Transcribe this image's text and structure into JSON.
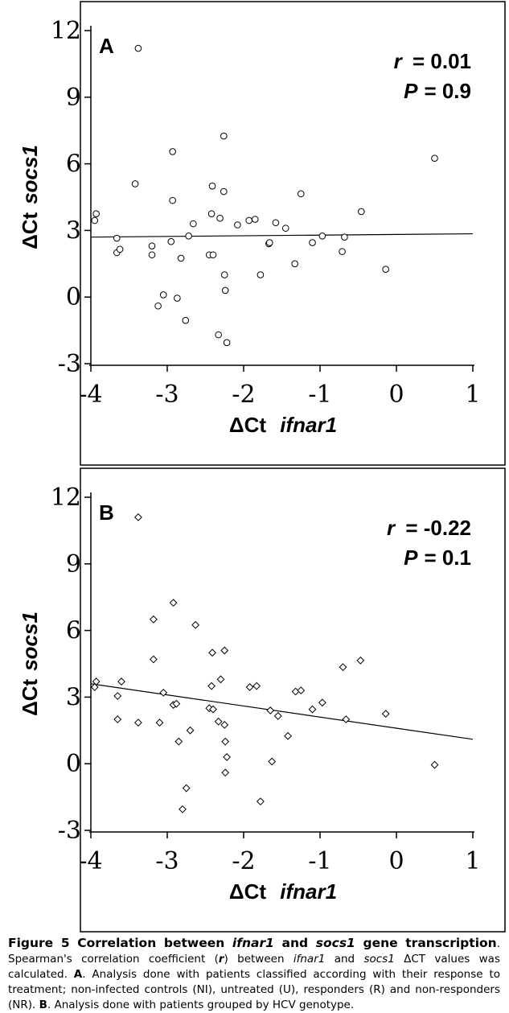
{
  "chart_data": [
    {
      "type": "scatter",
      "panel_label": "A",
      "marker": "circle",
      "xlabel_prefix": "ΔCt",
      "xlabel_gene": "ifnar1",
      "ylabel_prefix": "ΔCt",
      "ylabel_gene": "socs1",
      "xlim": [
        -4,
        1
      ],
      "ylim": [
        -3,
        12
      ],
      "x_ticks": [
        -4,
        -3,
        -2,
        -1,
        0,
        1
      ],
      "x_tick_labels": [
        "-4",
        "-3",
        "-2",
        "-1",
        "0",
        "1"
      ],
      "y_ticks": [
        -3,
        0,
        3,
        6,
        9,
        12
      ],
      "y_tick_labels": [
        "-3",
        "0",
        "3",
        "6",
        "9",
        "12"
      ],
      "stat_r_label": "r",
      "stat_r_value": "= 0.01",
      "stat_p_label": "P",
      "stat_p_value": "=  0.9",
      "fit_line": {
        "x": [
          -4,
          1
        ],
        "y": [
          2.7,
          2.85
        ]
      },
      "points": [
        {
          "x": -3.38,
          "y": 11.2
        },
        {
          "x": -3.95,
          "y": 3.45
        },
        {
          "x": -3.93,
          "y": 3.75
        },
        {
          "x": -3.66,
          "y": 2.65
        },
        {
          "x": -3.66,
          "y": 2.0
        },
        {
          "x": -3.62,
          "y": 2.15
        },
        {
          "x": -3.42,
          "y": 5.1
        },
        {
          "x": -3.2,
          "y": 2.3
        },
        {
          "x": -3.2,
          "y": 1.9
        },
        {
          "x": -3.12,
          "y": -0.4
        },
        {
          "x": -3.05,
          "y": 0.1
        },
        {
          "x": -2.93,
          "y": 6.55
        },
        {
          "x": -2.93,
          "y": 4.35
        },
        {
          "x": -2.95,
          "y": 2.5
        },
        {
          "x": -2.87,
          "y": -0.05
        },
        {
          "x": -2.82,
          "y": 1.75
        },
        {
          "x": -2.76,
          "y": -1.05
        },
        {
          "x": -2.72,
          "y": 2.75
        },
        {
          "x": -2.66,
          "y": 3.3
        },
        {
          "x": -2.45,
          "y": 1.9
        },
        {
          "x": -2.4,
          "y": 1.9
        },
        {
          "x": -2.41,
          "y": 5.0
        },
        {
          "x": -2.42,
          "y": 3.75
        },
        {
          "x": -2.33,
          "y": -1.7
        },
        {
          "x": -2.31,
          "y": 3.55
        },
        {
          "x": -2.26,
          "y": 7.25
        },
        {
          "x": -2.26,
          "y": 4.75
        },
        {
          "x": -2.25,
          "y": 1.0
        },
        {
          "x": -2.24,
          "y": 0.3
        },
        {
          "x": -2.22,
          "y": -2.05
        },
        {
          "x": -2.08,
          "y": 3.25
        },
        {
          "x": -1.93,
          "y": 3.45
        },
        {
          "x": -1.85,
          "y": 3.5
        },
        {
          "x": -1.78,
          "y": 1.0
        },
        {
          "x": -1.67,
          "y": 2.4
        },
        {
          "x": -1.66,
          "y": 2.45
        },
        {
          "x": -1.58,
          "y": 3.35
        },
        {
          "x": -1.45,
          "y": 3.1
        },
        {
          "x": -1.33,
          "y": 1.5
        },
        {
          "x": -1.25,
          "y": 4.65
        },
        {
          "x": -1.1,
          "y": 2.45
        },
        {
          "x": -0.97,
          "y": 2.75
        },
        {
          "x": -0.71,
          "y": 2.05
        },
        {
          "x": -0.68,
          "y": 2.7
        },
        {
          "x": -0.46,
          "y": 3.85
        },
        {
          "x": -0.14,
          "y": 1.25
        },
        {
          "x": 0.5,
          "y": 6.25
        }
      ]
    },
    {
      "type": "scatter",
      "panel_label": "B",
      "marker": "diamond",
      "xlabel_prefix": "ΔCt",
      "xlabel_gene": "ifnar1",
      "ylabel_prefix": "ΔCt",
      "ylabel_gene": "socs1",
      "xlim": [
        -4,
        1
      ],
      "ylim": [
        -3,
        12
      ],
      "x_ticks": [
        -4,
        -3,
        -2,
        -1,
        0,
        1
      ],
      "x_tick_labels": [
        "-4",
        "-3",
        "-2",
        "-1",
        "0",
        "1"
      ],
      "y_ticks": [
        -3,
        0,
        3,
        6,
        9,
        12
      ],
      "y_tick_labels": [
        "-3",
        "0",
        "3",
        "6",
        "9",
        "12"
      ],
      "stat_r_label": "r",
      "stat_r_value": "= -0.22",
      "stat_p_label": "P",
      "stat_p_value": "=  0.1",
      "fit_line": {
        "x": [
          -4,
          1
        ],
        "y": [
          3.6,
          1.1
        ]
      },
      "points": [
        {
          "x": -3.38,
          "y": 11.1
        },
        {
          "x": -3.95,
          "y": 3.45
        },
        {
          "x": -3.93,
          "y": 3.7
        },
        {
          "x": -3.65,
          "y": 3.05
        },
        {
          "x": -3.65,
          "y": 2.0
        },
        {
          "x": -3.6,
          "y": 3.7
        },
        {
          "x": -3.38,
          "y": 1.85
        },
        {
          "x": -3.18,
          "y": 6.5
        },
        {
          "x": -3.18,
          "y": 4.7
        },
        {
          "x": -3.1,
          "y": 1.85
        },
        {
          "x": -3.05,
          "y": 3.2
        },
        {
          "x": -2.92,
          "y": 7.25
        },
        {
          "x": -2.92,
          "y": 2.65
        },
        {
          "x": -2.88,
          "y": 2.7
        },
        {
          "x": -2.85,
          "y": 1.0
        },
        {
          "x": -2.8,
          "y": -2.05
        },
        {
          "x": -2.75,
          "y": -1.1
        },
        {
          "x": -2.7,
          "y": 1.5
        },
        {
          "x": -2.63,
          "y": 6.25
        },
        {
          "x": -2.45,
          "y": 2.5
        },
        {
          "x": -2.42,
          "y": 3.5
        },
        {
          "x": -2.41,
          "y": 5.0
        },
        {
          "x": -2.4,
          "y": 2.45
        },
        {
          "x": -2.33,
          "y": 1.9
        },
        {
          "x": -2.3,
          "y": 3.8
        },
        {
          "x": -2.25,
          "y": 5.1
        },
        {
          "x": -2.25,
          "y": 1.75
        },
        {
          "x": -2.24,
          "y": 1.0
        },
        {
          "x": -2.22,
          "y": 0.3
        },
        {
          "x": -2.24,
          "y": -0.4
        },
        {
          "x": -1.92,
          "y": 3.45
        },
        {
          "x": -1.83,
          "y": 3.5
        },
        {
          "x": -1.78,
          "y": -1.7
        },
        {
          "x": -1.65,
          "y": 2.4
        },
        {
          "x": -1.63,
          "y": 0.1
        },
        {
          "x": -1.55,
          "y": 2.15
        },
        {
          "x": -1.42,
          "y": 1.25
        },
        {
          "x": -1.32,
          "y": 3.25
        },
        {
          "x": -1.25,
          "y": 3.3
        },
        {
          "x": -1.1,
          "y": 2.45
        },
        {
          "x": -0.97,
          "y": 2.75
        },
        {
          "x": -0.7,
          "y": 4.35
        },
        {
          "x": -0.66,
          "y": 2.0
        },
        {
          "x": -0.47,
          "y": 4.65
        },
        {
          "x": -0.14,
          "y": 2.25
        },
        {
          "x": 0.5,
          "y": -0.05
        }
      ]
    }
  ],
  "caption": {
    "title_prefix": "Figure 5 Correlation between ",
    "title_gene1": "ifnar1",
    "title_mid": " and ",
    "title_gene2": "socs1",
    "title_suffix": " gene transcription",
    "sentence1_a": ". Spearman's correlation coefficient (",
    "sentence1_r": "r",
    "sentence1_b": ") between ",
    "sentence1_gene1": "ifnar1",
    "sentence1_c": " and ",
    "sentence1_gene2": "socs1",
    "sentence1_d": " ΔCT values was calculated. ",
    "label_a": "A",
    "text_a": ". Analysis done with patients classified according with their response to treatment; non-infected controls (NI), untreated (U), responders (R) and non-responders (NR). ",
    "label_b": "B",
    "text_b": ". Analysis done with patients grouped by HCV genotype."
  }
}
